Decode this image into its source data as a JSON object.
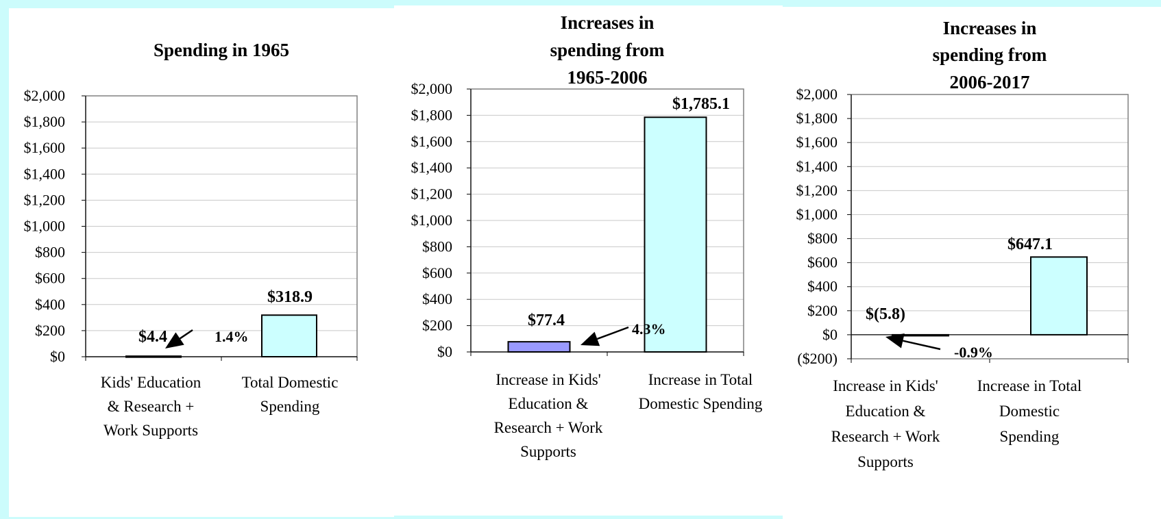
{
  "chart_data": [
    {
      "type": "bar",
      "title": "Spending in 1965",
      "categories": [
        "Kids' Education & Research + Work Supports",
        "Total Domestic Spending"
      ],
      "category_lines": [
        [
          "Kids' Education",
          "& Research +",
          "Work Supports"
        ],
        [
          "Total Domestic",
          "Spending"
        ]
      ],
      "values": [
        4.4,
        318.9
      ],
      "value_labels": [
        "$4.4",
        "$318.9"
      ],
      "bar_colors": [
        "#9999ff",
        "#ccffff"
      ],
      "annotation": {
        "text": "1.4%",
        "points_to": 0
      },
      "ylim": [
        0,
        2000
      ],
      "ytick_step": 200,
      "ytick_labels": [
        "$0",
        "$200",
        "$400",
        "$600",
        "$800",
        "$1,000",
        "$1,200",
        "$1,400",
        "$1,600",
        "$1,800",
        "$2,000"
      ],
      "grid": true
    },
    {
      "type": "bar",
      "title": "Increases in spending from 1965-2006",
      "title_lines": [
        "Increases in",
        "spending from",
        "1965-2006"
      ],
      "categories": [
        "Increase in Kids' Education & Research + Work Supports",
        "Increase in Total Domestic Spending"
      ],
      "category_lines": [
        [
          "Increase in Kids'",
          "Education &",
          "Research + Work",
          "Supports"
        ],
        [
          "Increase in Total",
          "Domestic Spending"
        ]
      ],
      "values": [
        77.4,
        1785.1
      ],
      "value_labels": [
        "$77.4",
        "$1,785.1"
      ],
      "bar_colors": [
        "#9999ff",
        "#ccffff"
      ],
      "annotation": {
        "text": "4.3%",
        "points_to": 0
      },
      "ylim": [
        0,
        2000
      ],
      "ytick_step": 200,
      "ytick_labels": [
        "$0",
        "$200",
        "$400",
        "$600",
        "$800",
        "$1,000",
        "$1,200",
        "$1,400",
        "$1,600",
        "$1,800",
        "$2,000"
      ],
      "grid": true
    },
    {
      "type": "bar",
      "title": "Increases in spending from 2006-2017",
      "title_lines": [
        "Increases in",
        "spending from",
        "2006-2017"
      ],
      "categories": [
        "Increase in Kids' Education & Research + Work Supports",
        "Increase in Total Domestic Spending"
      ],
      "category_lines": [
        [
          "Increase in Kids'",
          "Education &",
          "Research + Work",
          "Supports"
        ],
        [
          "Increase in Total",
          "Domestic",
          "Spending"
        ]
      ],
      "values": [
        -5.8,
        647.1
      ],
      "value_labels": [
        "$(5.8)",
        "$647.1"
      ],
      "bar_colors": [
        "#9999ff",
        "#ccffff"
      ],
      "annotation": {
        "text": "-0.9%",
        "points_to": 0
      },
      "ylim": [
        -200,
        2000
      ],
      "ytick_step": 200,
      "ytick_labels": [
        "($200)",
        "$0",
        "$200",
        "$400",
        "$600",
        "$800",
        "$1,000",
        "$1,200",
        "$1,400",
        "$1,600",
        "$1,800",
        "$2,000"
      ],
      "grid": true
    }
  ]
}
